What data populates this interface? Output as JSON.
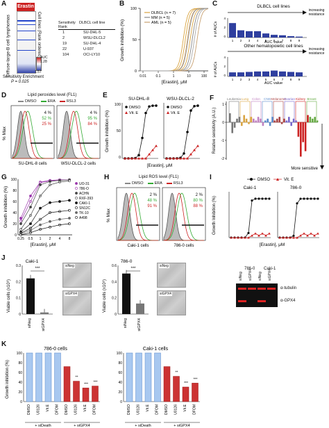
{
  "panelA": {
    "label": "A",
    "title": "Erastin",
    "y_label": "Diffuse-large-B cell lymphomas",
    "side_label": "Cell lines (Rank ordered)",
    "colorbar_label": "AUC",
    "colorbar_max": "1.28",
    "colorbar_min": "1.57",
    "table_headers": [
      "Sensitivity Rank",
      "DLBCL cell line"
    ],
    "table_rows": [
      {
        "rank": "1",
        "line": "SU-DHL-5"
      },
      {
        "rank": "2",
        "line": "WSU-DLCL2"
      },
      {
        "rank": "19",
        "line": "SU-DHL-4"
      },
      {
        "rank": "22",
        "line": "U-937"
      },
      {
        "rank": "104",
        "line": "OCI-LY10"
      }
    ],
    "enrichment_label": "Sensitivity Enrichment",
    "pvalue": "P = 0.025"
  },
  "panelB": {
    "label": "B",
    "ylabel": "Growth inhibition (%)",
    "xlabel": "[Erastin], μM",
    "legend": [
      {
        "name": "DLBCL (n = 7)",
        "color": "#d9a441"
      },
      {
        "name": "MM (n = 5)",
        "color": "#888888"
      },
      {
        "name": "AML (n = 5)",
        "color": "#c8a070"
      }
    ],
    "yticks": [
      "100",
      "50",
      "0"
    ],
    "xticks": [
      "0.01",
      "0.1",
      "1",
      "10",
      "100"
    ]
  },
  "panelC": {
    "label": "C",
    "top_title": "DLBCL cell lines",
    "bottom_title": "Other hematopoietic cell lines",
    "arrow_text": "increasing resistance",
    "ylabel": "# of AUCs",
    "xlabel": "AUC value",
    "xticks": [
      "1",
      "2",
      "3",
      "4",
      "5",
      "6",
      "7",
      "8",
      "9"
    ],
    "top_values": [
      3.2,
      1.6,
      1.4,
      1.4,
      0.9,
      0.6,
      0.5,
      0.3,
      0.2
    ],
    "bottom_values": [
      0.9,
      0.9,
      1.0,
      1.1,
      1.1,
      1.3,
      1.1,
      1.0,
      0.9
    ],
    "top_yticks": [
      "4",
      "2",
      "0"
    ],
    "bottom_yticks": [
      "4",
      "2",
      "0"
    ]
  },
  "panelD": {
    "label": "D",
    "title": "Lipid peroxides level (FL1)",
    "legend": [
      {
        "name": "DMSO",
        "color": "#888888"
      },
      {
        "name": "ERA",
        "color": "#33aa33"
      },
      {
        "name": "RSL3",
        "color": "#cc2222"
      }
    ],
    "ylabel": "% Max",
    "left_caption": "SU-DHL-8 cells",
    "right_caption": "WSU-DLCL-2 cells",
    "left_pcts": [
      "4 %",
      "52 %",
      "25 %"
    ],
    "right_pcts": [
      "4 %",
      "95 %",
      "84 %"
    ]
  },
  "panelE": {
    "label": "E",
    "left_title": "SU-DHL-8",
    "right_title": "WSU-DLCL-2",
    "ylabel": "Growth inhibition (%)",
    "xlabel": "[Erastin], μM",
    "legend": [
      "DMSO",
      "Vit. E"
    ],
    "yticks": [
      "100",
      "50",
      "0"
    ]
  },
  "panelF": {
    "label": "F",
    "ylabel": "Relative sensitivity (A.U.)",
    "categories": [
      "Leukemia",
      "Lung",
      "Colon",
      "CNS",
      "Melanoma",
      "Ovarian",
      "Kidney",
      "Breast"
    ],
    "yticks": [
      "1",
      "0",
      "-1",
      "-2"
    ],
    "arrow_text": "More sensitive"
  },
  "panelG": {
    "label": "G",
    "ylabel": "Growth inhibition (%)",
    "xlabel": "[Erastin], μM",
    "xticks": [
      "0.25",
      "0.5",
      "1",
      "2",
      "4",
      "8"
    ],
    "yticks": [
      "100",
      "80",
      "60",
      "40",
      "20",
      "0"
    ],
    "legend": [
      "UO-31",
      "786-O",
      "ACHN",
      "RXF-393",
      "CAKI-1",
      "SN12C",
      "TK-10",
      "A498"
    ]
  },
  "panelH": {
    "label": "H",
    "title": "Lipid ROS level (FL1)",
    "legend": [
      {
        "name": "DMSO",
        "color": "#888888"
      },
      {
        "name": "ERA",
        "color": "#33aa33"
      },
      {
        "name": "RSL3",
        "color": "#cc2222"
      }
    ],
    "ylabel": "% Max",
    "left_caption": "Caki-1 cells",
    "right_caption": "786-0 cells",
    "left_pcts": [
      "2 %",
      "48 %",
      "91 %"
    ],
    "right_pcts": [
      "2 %",
      "80 %",
      "88 %"
    ]
  },
  "panelI": {
    "label": "I",
    "legend": [
      "DMSO",
      "Vit. E"
    ],
    "left_title": "Caki-1",
    "right_title": "786-0",
    "ylabel": "Growth Inhibition (%)",
    "xlabel": "[Erastin], μM"
  },
  "panelJ": {
    "label": "J",
    "left_title": "Caki-1",
    "mid_title": "786-0",
    "ylabel": "Viable cells (x10⁶)",
    "sig": "***",
    "bars": [
      "siNeg",
      "siGPX4"
    ],
    "left_values": [
      0.22,
      0.01
    ],
    "mid_values": [
      0.5,
      0.13
    ],
    "left_yticks": [
      "0.3",
      "0.2",
      "0.1",
      "0"
    ],
    "mid_yticks": [
      "0.6",
      "0.4",
      "0.2",
      "0"
    ],
    "micro_labels": [
      "siNeg",
      "siGPX4",
      "siNeg",
      "siGPX4"
    ],
    "blot_headers": [
      "786-0",
      "Caki-1"
    ],
    "blot_lanes": [
      "siNeg",
      "siGPX4",
      "siNeg",
      "siGPX4"
    ],
    "blot_rows": [
      "α-tubulin",
      "α-GPX4"
    ]
  },
  "panelK": {
    "label": "K",
    "left_title": "786-0 cells",
    "right_title": "Caki-1 cells",
    "ylabel": "Growth inhibition (%)",
    "yticks": [
      "100",
      "80",
      "60",
      "40",
      "20",
      "0"
    ],
    "categories": [
      "DMSO",
      "U0126",
      "Vit.E",
      "DFOM",
      "DMSO",
      "U0126",
      "Vit.E",
      "DFOM"
    ],
    "group_labels": [
      "+ siDeath",
      "+ siGPX4"
    ],
    "left_values": [
      100,
      100,
      100,
      100,
      72,
      42,
      28,
      32
    ],
    "right_values": [
      100,
      100,
      100,
      100,
      72,
      52,
      30,
      38
    ],
    "sig_left": [
      "",
      "",
      "",
      "",
      "",
      "**",
      "***",
      "***"
    ],
    "sig_right": [
      "",
      "",
      "",
      "",
      "",
      "**",
      "***",
      "***"
    ]
  }
}
